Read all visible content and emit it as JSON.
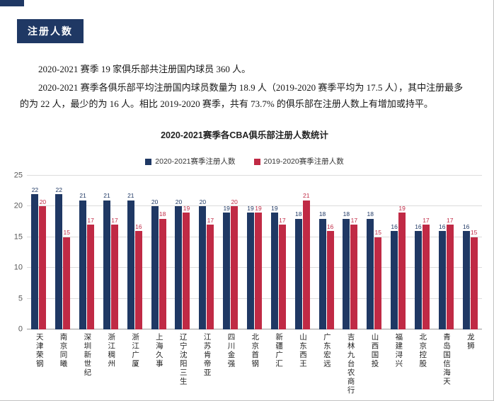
{
  "page": {
    "accent_color": "#1F3864",
    "badge": "注册人数",
    "paragraph1": "2020-2021 赛季 19 家俱乐部共注册国内球员 360 人。",
    "paragraph2": "2020-2021 赛季各俱乐部平均注册国内球员数量为 18.9 人（2019-2020 赛季平均为 17.5 人），其中注册最多的为 22 人，最少的为 16 人。相比 2019-2020 赛季，共有 73.7% 的俱乐部在注册人数上有增加或持平。"
  },
  "chart_data": {
    "type": "bar",
    "title": "2020-2021赛季各CBA俱乐部注册人数统计",
    "categories": [
      "天津荣钢",
      "南京同曦",
      "深圳新世纪",
      "浙江稠州",
      "浙江广厦",
      "上海久事",
      "辽宁沈阳三生",
      "江苏肯帝亚",
      "四川金强",
      "北京首钢",
      "新疆广汇",
      "山东西王",
      "广东宏远",
      "吉林九台农商行",
      "山西国投",
      "福建浔兴",
      "北京控股",
      "青岛国信海天",
      "龙狮"
    ],
    "series": [
      {
        "name": "2020-2021赛季注册人数",
        "color": "#1F3864",
        "values": [
          22,
          22,
          21,
          21,
          21,
          20,
          20,
          20,
          19,
          19,
          19,
          18,
          18,
          18,
          18,
          16,
          16,
          16,
          16
        ]
      },
      {
        "name": "2019-2020赛季注册人数",
        "color": "#C02A45",
        "values": [
          20,
          15,
          17,
          17,
          16,
          18,
          19,
          17,
          20,
          19,
          17,
          21,
          16,
          17,
          15,
          19,
          17,
          17,
          15
        ]
      }
    ],
    "xlabel": "",
    "ylabel": "",
    "ylim": [
      0,
      25
    ],
    "yticks": [
      0,
      5,
      10,
      15,
      20,
      25
    ],
    "grid": true,
    "legend_position": "top"
  }
}
